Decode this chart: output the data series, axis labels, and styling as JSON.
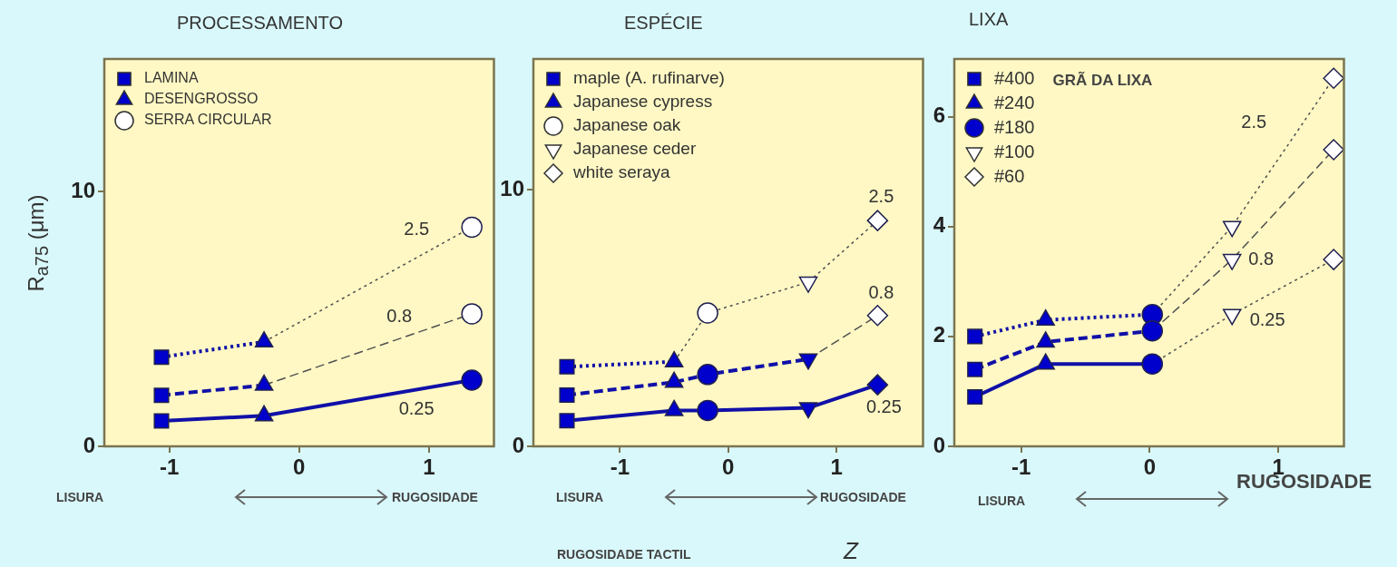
{
  "chart_data": [
    {
      "type": "line",
      "title": "PROCESSAMENTO",
      "ylabel": "R$_{a75}$ (μm)",
      "xlim": [
        -1.5,
        1.5
      ],
      "xticks": [
        -1,
        0,
        1
      ],
      "ylim": [
        0,
        15.2
      ],
      "yticks": [
        0,
        10
      ],
      "grid": false,
      "legend": "top left",
      "series": [
        {
          "type": "line",
          "color": "#1010a8",
          "line_style": "dotted",
          "marker": "none",
          "x": [
            -1.06,
            -0.27
          ],
          "values": [
            3.5,
            4.1
          ]
        },
        {
          "type": "line",
          "name": "2.5",
          "color": "#505050",
          "line_style": "dotted",
          "marker": "none",
          "x": [
            -0.27,
            1.33
          ],
          "values": [
            4.1,
            8.6
          ]
        },
        {
          "type": "line",
          "color": "#1010a8",
          "line_style": "dashed",
          "marker": "none",
          "x": [
            -1.06,
            -0.27
          ],
          "values": [
            2.0,
            2.4
          ]
        },
        {
          "type": "line",
          "name": "0.8",
          "color": "#505050",
          "line_style": "dashed",
          "marker": "none",
          "x": [
            -0.27,
            1.33
          ],
          "values": [
            2.4,
            5.2
          ]
        },
        {
          "type": "line",
          "name": "0.25",
          "color": "#1010a8",
          "line_style": "solid",
          "marker": "none",
          "x": [
            -1.06,
            -0.27,
            1.33
          ],
          "values": [
            1.0,
            1.2,
            2.6
          ]
        },
        {
          "type": "scatter",
          "name": "LAMINA",
          "marker": "square",
          "color": "#0000cc",
          "colors": [
            "#0000cc",
            "#0000cc",
            "#0000cc"
          ],
          "x": [
            -1.06,
            -1.06,
            -1.06
          ],
          "values": [
            3.5,
            2.0,
            1.0
          ]
        },
        {
          "type": "scatter",
          "name": "DESENGROSSO",
          "marker": "triangle",
          "color": "#0000cc",
          "colors": [
            "#0000cc",
            "#0000cc",
            "#0000cc"
          ],
          "x": [
            -0.27,
            -0.27,
            -0.27
          ],
          "values": [
            4.1,
            2.4,
            1.2
          ]
        },
        {
          "type": "scatter",
          "name": "SERRA CIRCULAR",
          "marker": "circle",
          "color": "#ffffff",
          "colors": [
            "#ffffff",
            "#ffffff",
            "#0000cc"
          ],
          "x": [
            1.33,
            1.33,
            1.33
          ],
          "values": [
            8.6,
            5.2,
            2.6
          ]
        }
      ],
      "annotations": [
        "LISURA",
        "RUGOSIDADE"
      ]
    },
    {
      "type": "line",
      "title": "ESPÉCIE",
      "xlabel": "Z",
      "xlim": [
        -1.8,
        1.8
      ],
      "xticks": [
        -1,
        0,
        1
      ],
      "ylim": [
        0,
        15.1
      ],
      "yticks": [
        0,
        10
      ],
      "grid": false,
      "legend": "top left",
      "series": [
        {
          "type": "line",
          "color": "#1010a8",
          "line_style": "dotted",
          "marker": "none",
          "x": [
            -1.49,
            -0.5
          ],
          "values": [
            3.1,
            3.3
          ]
        },
        {
          "type": "line",
          "name": "2.5",
          "color": "#505050",
          "line_style": "dotted",
          "marker": "none",
          "x": [
            -0.5,
            -0.19,
            0.74,
            1.38
          ],
          "values": [
            3.3,
            5.2,
            6.4,
            8.8
          ]
        },
        {
          "type": "line",
          "color": "#1010a8",
          "line_style": "dashed",
          "marker": "none",
          "x": [
            -1.49,
            -0.5,
            -0.19,
            0.74
          ],
          "values": [
            2.0,
            2.5,
            2.8,
            3.4
          ]
        },
        {
          "type": "line",
          "name": "0.8",
          "color": "#505050",
          "line_style": "dashed",
          "marker": "none",
          "x": [
            0.74,
            1.38
          ],
          "values": [
            3.4,
            5.1
          ]
        },
        {
          "type": "line",
          "name": "0.25",
          "color": "#1010a8",
          "line_style": "solid",
          "marker": "none",
          "x": [
            -1.49,
            -0.5,
            -0.19,
            0.74,
            1.38
          ],
          "values": [
            1.0,
            1.4,
            1.4,
            1.5,
            2.4
          ]
        },
        {
          "type": "scatter",
          "name": "maple (A. rufinarve)",
          "marker": "square",
          "color": "#0000cc",
          "colors": [
            "#0000cc",
            "#0000cc",
            "#0000cc"
          ],
          "x": [
            -1.49,
            -1.49,
            -1.49
          ],
          "values": [
            3.1,
            2.0,
            1.0
          ]
        },
        {
          "type": "scatter",
          "name": "Japanese cypress",
          "marker": "triangle",
          "color": "#0000cc",
          "colors": [
            "#0000cc",
            "#0000cc",
            "#0000cc"
          ],
          "x": [
            -0.5,
            -0.5,
            -0.5
          ],
          "values": [
            3.3,
            2.5,
            1.4
          ]
        },
        {
          "type": "scatter",
          "name": "Japanese oak",
          "marker": "circle",
          "color": "#ffffff",
          "colors": [
            "#ffffff",
            "#0000cc",
            "#0000cc"
          ],
          "x": [
            -0.19,
            -0.19,
            -0.19
          ],
          "values": [
            5.2,
            2.8,
            1.4
          ]
        },
        {
          "type": "scatter",
          "name": "Japanese ceder",
          "marker": "triangle-down",
          "color": "#ffffff",
          "colors": [
            "#ffffff",
            "#0000cc",
            "#0000cc"
          ],
          "x": [
            0.74,
            0.74,
            0.74
          ],
          "values": [
            6.4,
            3.4,
            1.5
          ]
        },
        {
          "type": "scatter",
          "name": "white seraya",
          "marker": "diamond",
          "color": "#ffffff",
          "colors": [
            "#ffffff",
            "#ffffff",
            "#0000cc"
          ],
          "x": [
            1.38,
            1.38,
            1.38
          ],
          "values": [
            8.8,
            5.1,
            2.4
          ]
        }
      ],
      "annotations": [
        "LISURA",
        "RUGOSIDADE",
        "RUGOSIDADE TACTIL"
      ]
    },
    {
      "type": "line",
      "title": "LIXA",
      "legend_title": "GRÃ DA LIXA",
      "xlim": [
        -1.52,
        1.51
      ],
      "xticks": [
        -1,
        0,
        1
      ],
      "ylim": [
        0,
        7.05
      ],
      "yticks": [
        0,
        2,
        4,
        6
      ],
      "grid": false,
      "legend": "top left",
      "series": [
        {
          "type": "line",
          "color": "#1010a8",
          "line_style": "dotted",
          "marker": "none",
          "x": [
            -1.36,
            -0.81,
            0.02
          ],
          "values": [
            2.0,
            2.3,
            2.4
          ]
        },
        {
          "type": "line",
          "name": "2.5",
          "color": "#505050",
          "line_style": "dotted",
          "marker": "none",
          "x": [
            0.02,
            0.64,
            1.43
          ],
          "values": [
            2.4,
            4.0,
            6.7
          ]
        },
        {
          "type": "line",
          "color": "#1010a8",
          "line_style": "dashed",
          "marker": "none",
          "x": [
            -1.36,
            -0.81,
            0.02
          ],
          "values": [
            1.4,
            1.9,
            2.1
          ]
        },
        {
          "type": "line",
          "name": "0.8",
          "color": "#505050",
          "line_style": "dashed",
          "marker": "none",
          "x": [
            0.02,
            0.64,
            1.43
          ],
          "values": [
            2.1,
            3.4,
            5.4
          ]
        },
        {
          "type": "line",
          "color": "#1010a8",
          "line_style": "solid",
          "marker": "none",
          "x": [
            -1.36,
            -0.81,
            0.02
          ],
          "values": [
            0.9,
            1.5,
            1.5
          ]
        },
        {
          "type": "line",
          "name": "0.25",
          "color": "#505050",
          "line_style": "dotted",
          "marker": "none",
          "x": [
            0.02,
            0.64,
            1.43
          ],
          "values": [
            1.5,
            2.4,
            3.4
          ]
        },
        {
          "type": "scatter",
          "name": "#400",
          "marker": "square",
          "color": "#0000cc",
          "colors": [
            "#0000cc",
            "#0000cc",
            "#0000cc"
          ],
          "x": [
            -1.36,
            -1.36,
            -1.36
          ],
          "values": [
            2.0,
            1.4,
            0.9
          ]
        },
        {
          "type": "scatter",
          "name": "#240",
          "marker": "triangle",
          "color": "#0000cc",
          "colors": [
            "#0000cc",
            "#0000cc",
            "#0000cc"
          ],
          "x": [
            -0.81,
            -0.81,
            -0.81
          ],
          "values": [
            2.3,
            1.9,
            1.5
          ]
        },
        {
          "type": "scatter",
          "name": "#180",
          "marker": "circle",
          "color": "#0000cc",
          "colors": [
            "#0000cc",
            "#0000cc",
            "#0000cc"
          ],
          "x": [
            0.02,
            0.02,
            0.02
          ],
          "values": [
            2.4,
            2.1,
            1.5
          ]
        },
        {
          "type": "scatter",
          "name": "#100",
          "marker": "triangle-down",
          "color": "#ffffff",
          "colors": [
            "#ffffff",
            "#ffffff",
            "#ffffff"
          ],
          "x": [
            0.64,
            0.64,
            0.64
          ],
          "values": [
            4.0,
            3.4,
            2.4
          ]
        },
        {
          "type": "scatter",
          "name": "#60",
          "marker": "diamond",
          "color": "#ffffff",
          "colors": [
            "#ffffff",
            "#ffffff",
            "#ffffff"
          ],
          "x": [
            1.43,
            1.43,
            1.43
          ],
          "values": [
            6.7,
            5.4,
            3.4
          ]
        }
      ],
      "annotations": [
        "LISURA",
        "RUGOSIDADE"
      ]
    }
  ]
}
